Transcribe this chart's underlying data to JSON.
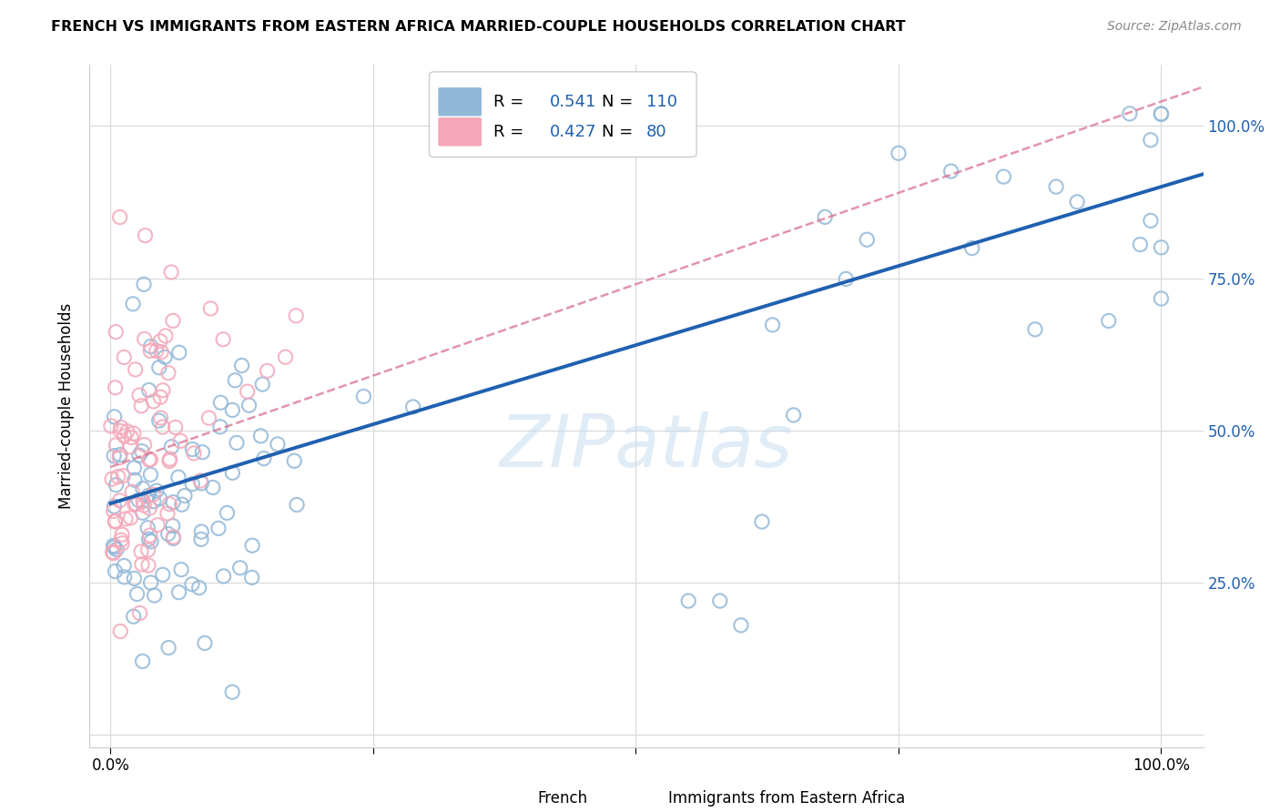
{
  "title": "FRENCH VS IMMIGRANTS FROM EASTERN AFRICA MARRIED-COUPLE HOUSEHOLDS CORRELATION CHART",
  "source": "Source: ZipAtlas.com",
  "ylabel": "Married-couple Households",
  "blue_color": "#92b8d8",
  "pink_color": "#f4a7b9",
  "blue_line_color": "#2060b0",
  "pink_line_color": "#d87090",
  "watermark": "ZIPatlas",
  "legend_R_blue": "0.541",
  "legend_N_blue": "110",
  "legend_R_pink": "0.427",
  "legend_N_pink": "80",
  "blue_intercept": 0.38,
  "blue_slope": 0.52,
  "pink_intercept": 0.44,
  "pink_slope": 0.6,
  "right_tick_color": "#2060b0",
  "grid_color": "#d8d8d8"
}
